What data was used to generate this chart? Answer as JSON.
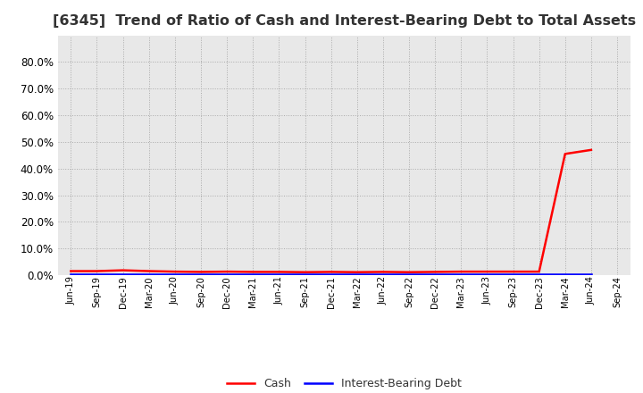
{
  "title": "[6345]  Trend of Ratio of Cash and Interest-Bearing Debt to Total Assets",
  "title_fontsize": 11.5,
  "ylim": [
    0.0,
    0.9
  ],
  "yticks": [
    0.0,
    0.1,
    0.2,
    0.3,
    0.4,
    0.5,
    0.6,
    0.7,
    0.8
  ],
  "x_labels": [
    "Jun-19",
    "Sep-19",
    "Dec-19",
    "Mar-20",
    "Jun-20",
    "Sep-20",
    "Dec-20",
    "Mar-21",
    "Jun-21",
    "Sep-21",
    "Dec-21",
    "Mar-22",
    "Jun-22",
    "Sep-22",
    "Dec-22",
    "Mar-23",
    "Jun-23",
    "Sep-23",
    "Dec-23",
    "Mar-24",
    "Jun-24",
    "Sep-24"
  ],
  "cash_values": [
    0.015,
    0.015,
    0.018,
    0.015,
    0.013,
    0.012,
    0.013,
    0.012,
    0.012,
    0.011,
    0.012,
    0.011,
    0.012,
    0.011,
    0.012,
    0.013,
    0.013,
    0.013,
    0.013,
    0.455,
    0.47,
    null
  ],
  "debt_values": [
    0.003,
    0.003,
    0.003,
    0.003,
    0.003,
    0.003,
    0.003,
    0.003,
    0.003,
    0.003,
    0.003,
    0.003,
    0.003,
    0.003,
    0.003,
    0.003,
    0.003,
    0.003,
    0.003,
    0.003,
    0.003,
    null
  ],
  "cash_color": "#ff0000",
  "debt_color": "#0000ff",
  "background_color": "#ffffff",
  "plot_bg_color": "#e8e8e8",
  "grid_color": "#aaaaaa",
  "legend_cash": "Cash",
  "legend_debt": "Interest-Bearing Debt",
  "line_width": 1.8,
  "tick_fontsize": 7.2,
  "ytick_fontsize": 8.5
}
